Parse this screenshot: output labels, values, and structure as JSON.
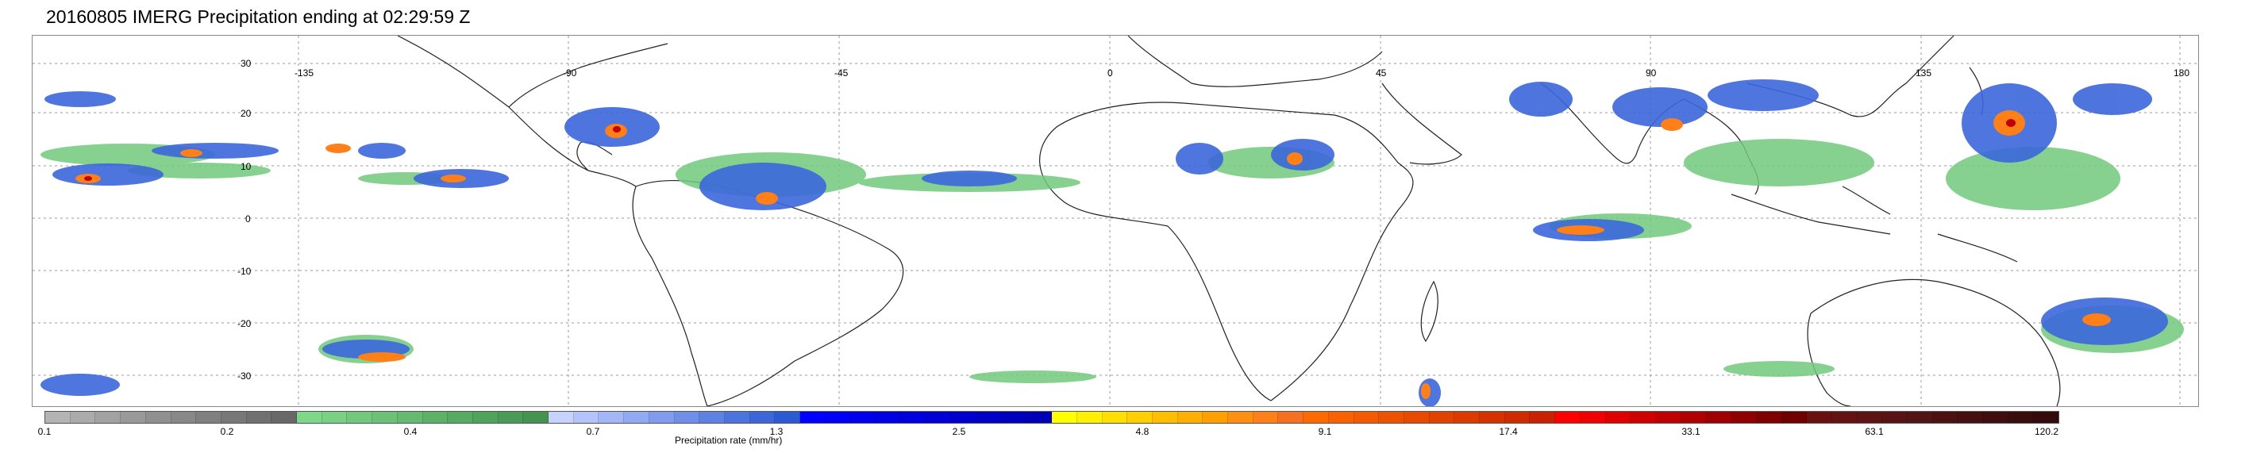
{
  "title": "20160805 IMERG Precipitation ending at 02:29:59 Z",
  "map": {
    "lon_labels": [
      "-135",
      "-90",
      "-45",
      "0",
      "45",
      "90",
      "135",
      "180"
    ],
    "lat_labels": [
      "30",
      "20",
      "10",
      "0",
      "-10",
      "-20",
      "-30"
    ],
    "grid": true,
    "land_outline_color": "#000000"
  },
  "colorbar": {
    "label": "Precipitation rate (mm/hr)",
    "ticks": [
      "0.1",
      "0.2",
      "0.4",
      "0.7",
      "1.3",
      "2.5",
      "4.8",
      "9.1",
      "17.4",
      "33.1",
      "63.1",
      "120.2"
    ],
    "colors": [
      "#b4b4b4",
      "#ababab",
      "#a2a2a2",
      "#999999",
      "#909090",
      "#888888",
      "#808080",
      "#787878",
      "#707070",
      "#686868",
      "#7fd88a",
      "#79d184",
      "#72c97d",
      "#6bc176",
      "#64ba6f",
      "#5db268",
      "#57aa62",
      "#50a35b",
      "#4a9b55",
      "#44944f",
      "#c8d2ff",
      "#b4c4fb",
      "#a3b7f7",
      "#92aaf3",
      "#819cee",
      "#6f8fe9",
      "#5e82e4",
      "#4c74df",
      "#3b67da",
      "#2a5ad4",
      "#0000ff",
      "#0000f7",
      "#0000ef",
      "#0000e7",
      "#0000df",
      "#0000d7",
      "#0000cf",
      "#0000c7",
      "#0000bf",
      "#0000b7",
      "#ffff00",
      "#ffef00",
      "#ffdf00",
      "#ffcf00",
      "#ffbf00",
      "#ffaf00",
      "#ff9f00",
      "#ff8f10",
      "#ff7f18",
      "#f77020",
      "#ff6a00",
      "#fa6200",
      "#f45a00",
      "#ee5200",
      "#e84a00",
      "#e24200",
      "#dc3a00",
      "#d63200",
      "#d02a00",
      "#ca2200",
      "#ff0000",
      "#f00000",
      "#e00000",
      "#d00000",
      "#c00000",
      "#b00000",
      "#a00000",
      "#900000",
      "#800000",
      "#700000",
      "#6a1010",
      "#641212",
      "#5e1414",
      "#581414",
      "#521414",
      "#4c1212",
      "#461010",
      "#400e0e",
      "#3a0c0c",
      "#340a0a"
    ]
  }
}
